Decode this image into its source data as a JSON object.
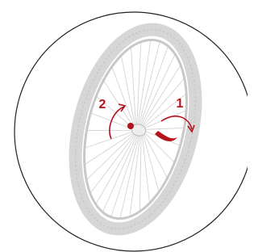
{
  "steps": [
    {
      "label": "1"
    },
    {
      "label": "2"
    }
  ]
}
